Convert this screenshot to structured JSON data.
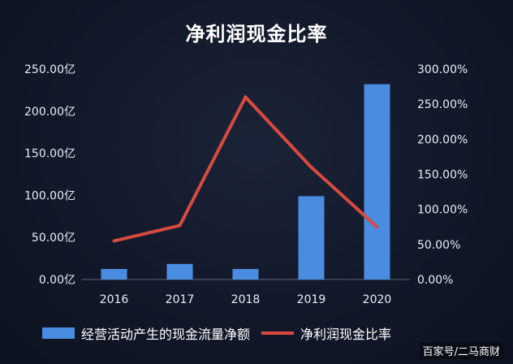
{
  "chart_data": {
    "type": "bar+line",
    "title": "净利润现金比率",
    "categories": [
      "2016",
      "2017",
      "2018",
      "2019",
      "2020"
    ],
    "series": [
      {
        "name": "经营活动产生的现金流量净额",
        "type": "bar",
        "axis": "left",
        "color": "#4a8de0",
        "values": [
          12.5,
          18.5,
          12.5,
          99.0,
          232.0
        ]
      },
      {
        "name": "净利润现金比率",
        "type": "line",
        "axis": "right",
        "color": "#d84a40",
        "values": [
          55.0,
          77.0,
          260.0,
          160.0,
          75.0
        ]
      }
    ],
    "y_left": {
      "ylim": [
        0,
        250
      ],
      "ticks": [
        0,
        50,
        100,
        150,
        200,
        250
      ],
      "tick_labels": [
        "0.00亿",
        "50.00亿",
        "100.00亿",
        "150.00亿",
        "200.00亿",
        "250.00亿"
      ]
    },
    "y_right": {
      "ylim": [
        0,
        300
      ],
      "ticks": [
        0,
        50,
        100,
        150,
        200,
        250,
        300
      ],
      "tick_labels": [
        "0.00%",
        "50.00%",
        "100.00%",
        "150.00%",
        "200.00%",
        "250.00%",
        "300.00%"
      ]
    },
    "grid": false,
    "legend_position": "bottom"
  },
  "legend": {
    "bar_label": "经营活动产生的现金流量净额",
    "line_label": "净利润现金比率"
  },
  "watermark": "百家号/二马商财"
}
